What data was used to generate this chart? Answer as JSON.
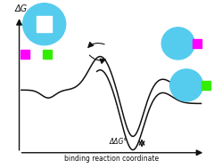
{
  "bg_color": "#ffffff",
  "curve_color": "#111111",
  "protein_color": "#55ccee",
  "ligand1_color": "#ff00ff",
  "ligand2_color": "#33ee00",
  "pocket_color": "#ffffff",
  "axis_color": "#111111",
  "text_color": "#111111",
  "ylabel": "ΔG",
  "xlabel": "binding reaction coordinate",
  "ddg_label": "ΔΔG°",
  "figsize": [
    2.4,
    1.89
  ],
  "dpi": 100
}
